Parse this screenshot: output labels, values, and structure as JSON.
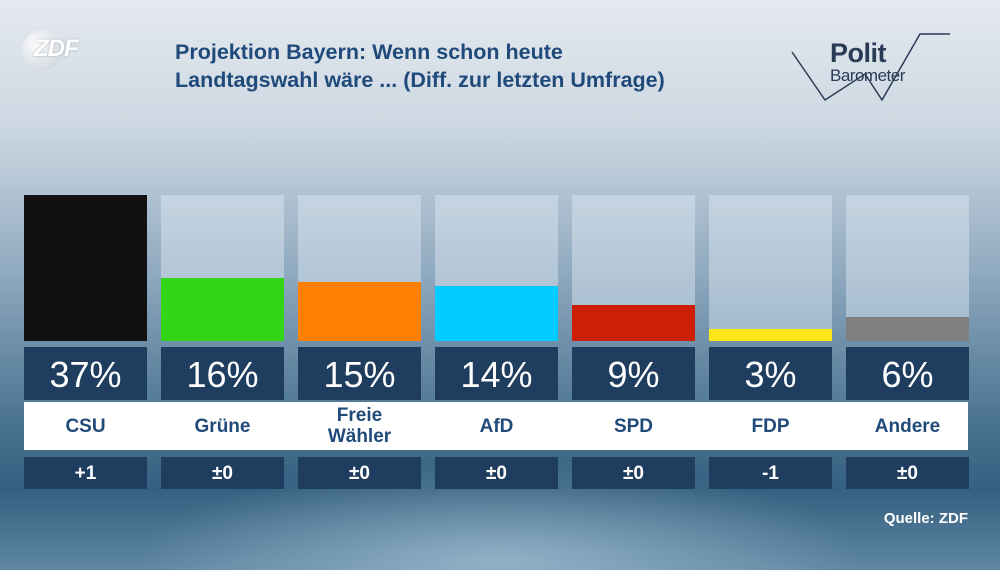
{
  "logo": {
    "brand": "ZDF"
  },
  "header": {
    "title_line1": "Projektion Bayern: Wenn schon heute",
    "title_line2": "Landtagswahl wäre ... (Diff. zur letzten Umfrage)"
  },
  "politbarometer": {
    "word1": "Polit",
    "word2": "Barometer"
  },
  "chart_data": {
    "type": "bar",
    "title": "Projektion Bayern: Wenn schon heute Landtagswahl wäre ... (Diff. zur letzten Umfrage)",
    "unit": "%",
    "ylim": [
      0,
      37
    ],
    "categories": [
      "CSU",
      "Grüne",
      "Freie Wähler",
      "AfD",
      "SPD",
      "FDP",
      "Andere"
    ],
    "category_lines": [
      [
        "CSU"
      ],
      [
        "Grüne"
      ],
      [
        "Freie",
        "Wähler"
      ],
      [
        "AfD"
      ],
      [
        "SPD"
      ],
      [
        "FDP"
      ],
      [
        "Andere"
      ]
    ],
    "values": [
      37,
      16,
      15,
      14,
      9,
      3,
      6
    ],
    "value_labels": [
      "37%",
      "16%",
      "15%",
      "14%",
      "9%",
      "3%",
      "6%"
    ],
    "diff_labels": [
      "+1",
      "±0",
      "±0",
      "±0",
      "±0",
      "-1",
      "±0"
    ],
    "colors": [
      "#111111",
      "#33d614",
      "#ff8000",
      "#00ccff",
      "#cc1f05",
      "#ffe61a",
      "#7f7f7f"
    ]
  },
  "footer": {
    "source": "Quelle: ZDF"
  }
}
